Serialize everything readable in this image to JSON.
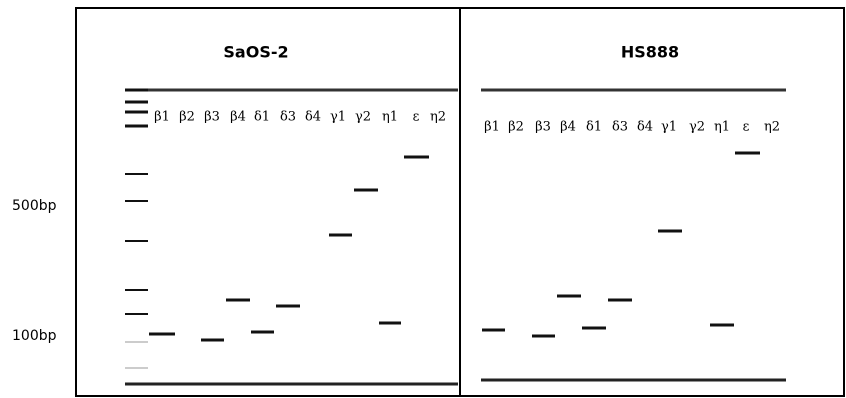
{
  "markers": [
    "500bp",
    "100bp"
  ],
  "panels": [
    {
      "title": "SaOS-2",
      "lanes": [
        "β1",
        "β2",
        "β3",
        "β4",
        "δ1",
        "δ3",
        "δ4",
        "γ1",
        "γ2",
        "η1",
        "ε",
        "η2"
      ]
    },
    {
      "title": "HS888",
      "lanes": [
        "β1",
        "β2",
        "β3",
        "β4",
        "δ1",
        "δ3",
        "δ4",
        "γ1",
        "γ2",
        "η1",
        "ε",
        "η2"
      ]
    }
  ]
}
